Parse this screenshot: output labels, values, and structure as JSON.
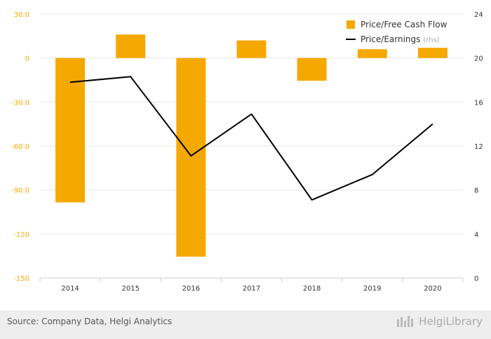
{
  "chart_data": {
    "type": "bar",
    "categories": [
      "2014",
      "2015",
      "2016",
      "2017",
      "2018",
      "2019",
      "2020"
    ],
    "series": [
      {
        "name": "Price/Free Cash Flow",
        "type": "bar",
        "axis": "left",
        "values": [
          -98.5,
          16.0,
          -135.5,
          12.0,
          -15.5,
          6.0,
          7.0
        ]
      },
      {
        "name": "Price/Earnings",
        "axis_note": "(rhs)",
        "type": "line",
        "axis": "right",
        "values": [
          17.8,
          18.3,
          11.1,
          14.9,
          7.1,
          9.4,
          14.0
        ]
      }
    ],
    "left_axis": {
      "min": -150,
      "max": 30,
      "ticks": [
        "30.0",
        "0",
        "-30.0",
        "-60.0",
        "-90.0",
        "-120",
        "-150"
      ]
    },
    "right_axis": {
      "min": 0,
      "max": 24,
      "ticks": [
        "24",
        "20",
        "16",
        "12",
        "8",
        "4",
        "0"
      ]
    },
    "legend_position": "top-right",
    "grid": true,
    "colors": {
      "bar": "#f5a800",
      "line": "#000000",
      "grid": "#e6e6e6"
    }
  },
  "footer": {
    "source": "Source: Company Data, Helgi Analytics",
    "brand": "HelgiLibrary"
  }
}
